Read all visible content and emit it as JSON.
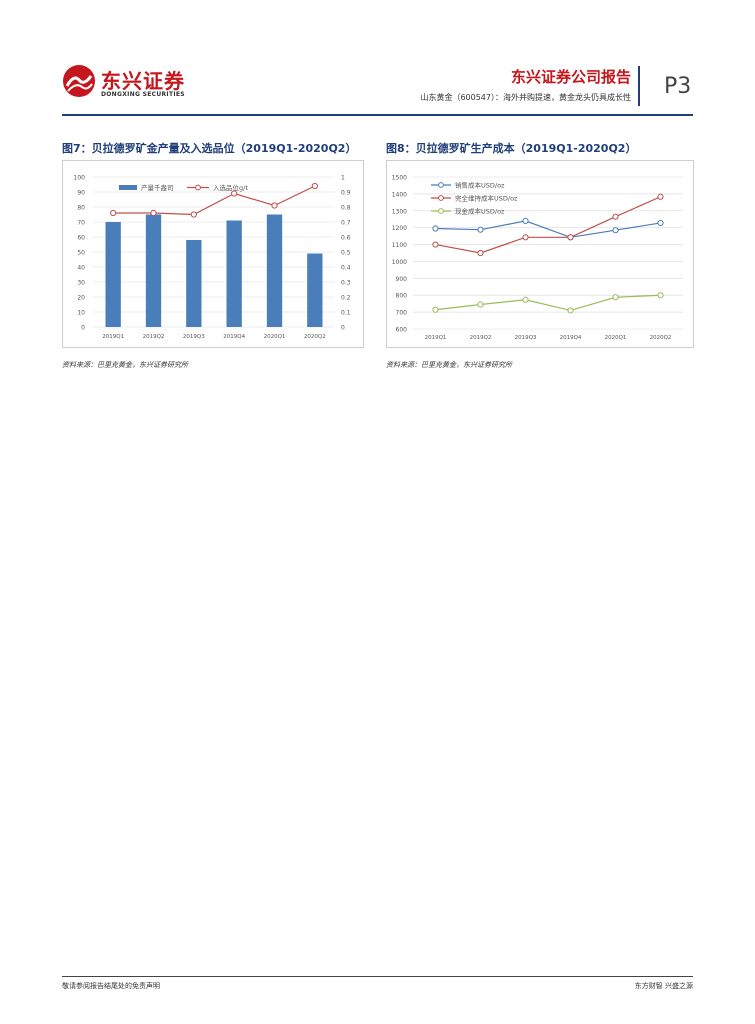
{
  "header": {
    "logo_cn": "东兴证券",
    "logo_en": "DONGXING SECURITIES",
    "report_title": "东兴证券公司报告",
    "report_subtitle": "山东黄金（600547）：海外并购提速，黄金龙头仍具成长性",
    "page_number": "P3"
  },
  "figures": [
    {
      "title": "图7：贝拉德罗矿金产量及入选品位（2019Q1-2020Q2）",
      "source": "资料来源：巴里克黄金，东兴证券研究所"
    },
    {
      "title": "图8：贝拉德罗矿生产成本（2019Q1-2020Q2）",
      "source": "资料来源：巴里克黄金，东兴证券研究所"
    }
  ],
  "chart_data": [
    {
      "type": "bar",
      "categories": [
        "2019Q1",
        "2019Q2",
        "2019Q3",
        "2019Q4",
        "2020Q1",
        "2020Q2"
      ],
      "series": [
        {
          "name": "产量千盎司",
          "type": "bar",
          "axis": "left",
          "values": [
            70,
            75,
            58,
            71,
            75,
            49
          ],
          "color": "#4a7ebb"
        },
        {
          "name": "入选品位g/t",
          "type": "line",
          "axis": "right",
          "values": [
            0.76,
            0.76,
            0.75,
            0.89,
            0.81,
            0.94
          ],
          "color": "#c0504d"
        }
      ],
      "y_left": {
        "min": 0,
        "max": 100,
        "step": 10,
        "ticks": [
          "0",
          "10",
          "20",
          "30",
          "40",
          "50",
          "60",
          "70",
          "80",
          "90",
          "100"
        ]
      },
      "y_right": {
        "min": 0,
        "max": 1,
        "step": 0.1,
        "ticks": [
          "0",
          "0.1",
          "0.2",
          "0.3",
          "0.4",
          "0.5",
          "0.6",
          "0.7",
          "0.8",
          "0.9",
          "1"
        ]
      },
      "grid": true,
      "legend": "top"
    },
    {
      "type": "line",
      "categories": [
        "2019Q1",
        "2019Q2",
        "2019Q3",
        "2019Q4",
        "2020Q1",
        "2020Q2"
      ],
      "series": [
        {
          "name": "销售成本USD/oz",
          "values": [
            1195,
            1188,
            1240,
            1143,
            1185,
            1228
          ],
          "color": "#4a7ebb"
        },
        {
          "name": "完全维持成本USD/oz",
          "values": [
            1100,
            1050,
            1143,
            1143,
            1265,
            1383
          ],
          "color": "#c0504d"
        },
        {
          "name": "现金成本USD/oz",
          "values": [
            714,
            745,
            773,
            710,
            788,
            800
          ],
          "color": "#9bbb59"
        }
      ],
      "y_axis": {
        "min": 600,
        "max": 1500,
        "step": 100,
        "ticks": [
          "600",
          "700",
          "800",
          "900",
          "1000",
          "1100",
          "1200",
          "1300",
          "1400",
          "1500"
        ]
      },
      "grid": true,
      "legend": "top-left"
    }
  ],
  "footer": {
    "left": "敬请参阅报告结尾处的免责声明",
    "right": "东方财智 兴盛之源"
  }
}
